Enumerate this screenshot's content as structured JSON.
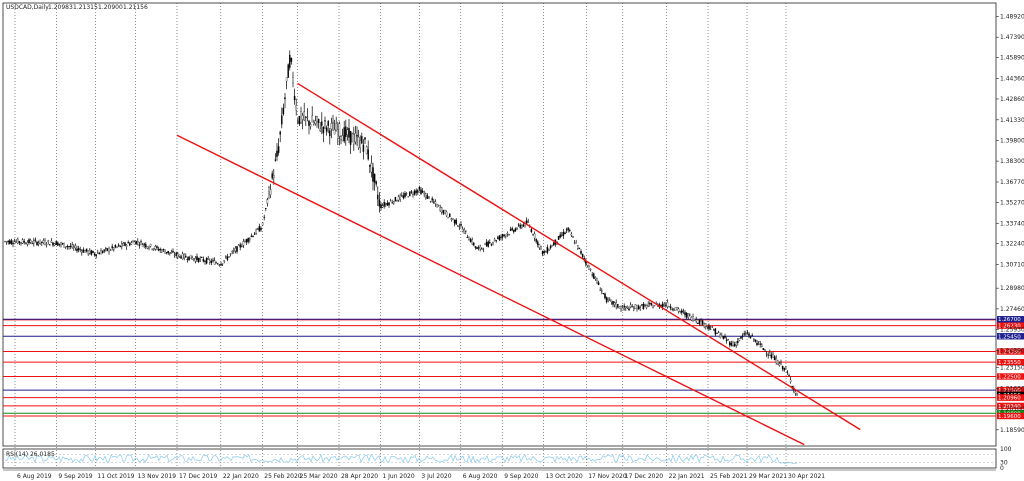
{
  "header": {
    "symbol_label": "USDCAD,Daily",
    "ohlc": [
      "1.20983",
      "1.21315",
      "1.20900",
      "1.21156"
    ]
  },
  "rsi_label": "RSI(14) 26.0185",
  "colors": {
    "trend": "#ee1111",
    "level_red": "#ee1111",
    "level_blue": "#1f1f8f",
    "level_green": "#118811",
    "candle": "#000000",
    "rsi_line": "#87c8ec",
    "grid": "#222222"
  },
  "chart_data": {
    "type": "line",
    "title": "USDCAD,Daily",
    "price_axis_ticks": [
      "1.48920",
      "1.47390",
      "1.45890",
      "1.44360",
      "1.42860",
      "1.41330",
      "1.39800",
      "1.38300",
      "1.36770",
      "1.35270",
      "1.33740",
      "1.32240",
      "1.30710",
      "1.28980",
      "1.27460",
      "1.25930",
      "1.24390",
      "1.23150",
      "1.21630",
      "1.20100",
      "1.18590"
    ],
    "price_range": [
      1.174,
      1.499
    ],
    "date_axis_labels": [
      "6 Aug 2019",
      "9 Sep 2019",
      "11 Oct 2019",
      "13 Nov 2019",
      "17 Dec 2019",
      "22 Jan 2020",
      "25 Feb 2020",
      "25 Mar 2020",
      "28 Apr 2020",
      "1 Jun 2020",
      "3 Jul 2020",
      "6 Aug 2020",
      "9 Sep 2020",
      "13 Oct 2020",
      "17 Nov 2020",
      "17 Dec 2020",
      "22 Jan 2021",
      "25 Feb 2021",
      "29 Mar 2021",
      "30 Apr 2021"
    ],
    "price_path": [
      [
        "6 Aug 2019",
        1.324
      ],
      [
        "9 Sep 2019",
        1.323
      ],
      [
        "11 Oct 2019",
        1.315
      ],
      [
        "13 Nov 2019",
        1.324
      ],
      [
        "17 Dec 2019",
        1.314
      ],
      [
        "22 Jan 2020",
        1.308
      ],
      [
        "25 Feb 2020",
        1.335
      ],
      [
        "9 Mar 2020",
        1.39
      ],
      [
        "19 Mar 2020",
        1.46
      ],
      [
        "25 Mar 2020",
        1.415
      ],
      [
        "28 Apr 2020",
        1.405
      ],
      [
        "20 May 2020",
        1.395
      ],
      [
        "1 Jun 2020",
        1.35
      ],
      [
        "3 Jul 2020",
        1.362
      ],
      [
        "6 Aug 2020",
        1.335
      ],
      [
        "20 Aug 2020",
        1.318
      ],
      [
        "9 Sep 2020",
        1.328
      ],
      [
        "30 Sep 2020",
        1.338
      ],
      [
        "13 Oct 2020",
        1.315
      ],
      [
        "2 Nov 2020",
        1.333
      ],
      [
        "17 Nov 2020",
        1.309
      ],
      [
        "4 Dec 2020",
        1.281
      ],
      [
        "17 Dec 2020",
        1.275
      ],
      [
        "22 Jan 2021",
        1.278
      ],
      [
        "25 Feb 2021",
        1.262
      ],
      [
        "18 Mar 2021",
        1.248
      ],
      [
        "29 Mar 2021",
        1.257
      ],
      [
        "30 Apr 2021",
        1.23
      ],
      [
        "10 May 2021",
        1.209
      ]
    ],
    "trend_lines": [
      {
        "start": [
          "25 Mar 2020",
          1.44
        ],
        "end": [
          "30 Jun 2021",
          1.186
        ]
      },
      {
        "start": [
          "17 Dec 2019",
          1.402
        ],
        "end": [
          "15 May 2021",
          1.175
        ]
      }
    ],
    "horizontal_levels": [
      {
        "value": "1.26650",
        "color": "red"
      },
      {
        "value": "1.26230",
        "color": "red"
      },
      {
        "value": "1.26700",
        "color": "blue"
      },
      {
        "value": "1.25450",
        "color": "blue"
      },
      {
        "value": "1.24330",
        "color": "red"
      },
      {
        "value": "1.23550",
        "color": "red"
      },
      {
        "value": "1.22500",
        "color": "red"
      },
      {
        "value": "1.21500",
        "color": "blue"
      },
      {
        "value": "1.20950",
        "color": "red"
      },
      {
        "value": "1.20340",
        "color": "red"
      },
      {
        "value": "1.19800",
        "color": "green"
      },
      {
        "value": "1.19600",
        "color": "red"
      }
    ],
    "current_price_tags": [
      "1.21500",
      "1.21156",
      "1.20960"
    ],
    "rsi": {
      "label": "RSI(14) 26.0185",
      "value": 26.0185,
      "ticks": [
        "100",
        "30",
        "0"
      ]
    },
    "grid": true
  }
}
